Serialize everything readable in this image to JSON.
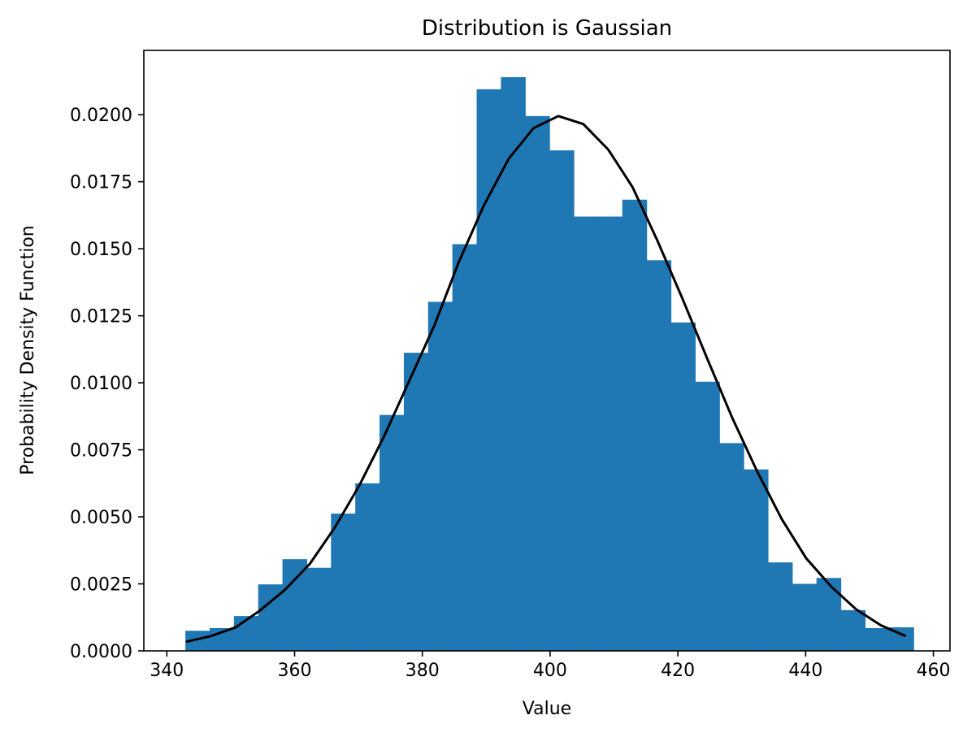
{
  "chart_data": {
    "type": "bar",
    "title": "Distribution is Gaussian",
    "xlabel": "Value",
    "ylabel": "Probability Density Function",
    "xlim": [
      336.4,
      462.6
    ],
    "ylim": [
      0,
      0.0224
    ],
    "xticks": [
      340,
      360,
      380,
      400,
      420,
      440,
      460
    ],
    "xtick_labels": [
      "340",
      "360",
      "380",
      "400",
      "420",
      "440",
      "460"
    ],
    "yticks": [
      0.0,
      0.0025,
      0.005,
      0.0075,
      0.01,
      0.0125,
      0.015,
      0.0175,
      0.02
    ],
    "ytick_labels": [
      "0.0000",
      "0.0025",
      "0.0050",
      "0.0075",
      "0.0100",
      "0.0125",
      "0.0150",
      "0.0175",
      "0.0200"
    ],
    "grid": false,
    "histogram": {
      "color": "#1f77b4",
      "bin_edges": [
        342.9,
        346.7,
        350.5,
        354.3,
        358.1,
        361.9,
        365.7,
        369.5,
        373.3,
        377.1,
        380.9,
        384.7,
        388.5,
        392.3,
        396.1,
        399.9,
        403.7,
        407.5,
        411.3,
        415.1,
        418.9,
        422.7,
        426.5,
        430.3,
        434.1,
        437.9,
        441.7,
        445.5,
        449.3,
        453.1,
        456.9
      ],
      "densities": [
        0.00075,
        0.00085,
        0.0013,
        0.00248,
        0.00342,
        0.0031,
        0.00512,
        0.00625,
        0.0088,
        0.01112,
        0.01302,
        0.01517,
        0.02095,
        0.0214,
        0.01995,
        0.01867,
        0.0162,
        0.0162,
        0.01683,
        0.01457,
        0.01225,
        0.01004,
        0.00775,
        0.00677,
        0.0033,
        0.0025,
        0.00272,
        0.00152,
        0.00085,
        0.00088
      ]
    },
    "series": [
      {
        "type": "line",
        "color": "#000000",
        "x": [
          343.0,
          346.9,
          350.8,
          354.6,
          358.5,
          362.4,
          366.3,
          370.2,
          374.1,
          378.0,
          381.9,
          385.7,
          389.6,
          393.5,
          397.4,
          401.3,
          405.2,
          409.1,
          412.9,
          416.8,
          420.7,
          424.6,
          428.5,
          432.4,
          436.3,
          440.1,
          444.0,
          447.9,
          451.8,
          455.7
        ],
        "y": [
          0.00034,
          0.00055,
          0.00088,
          0.00151,
          0.00228,
          0.00325,
          0.0046,
          0.0062,
          0.00805,
          0.0101,
          0.01215,
          0.0145,
          0.0166,
          0.01835,
          0.0195,
          0.01995,
          0.01965,
          0.0187,
          0.0173,
          0.0153,
          0.01315,
          0.0109,
          0.0087,
          0.0067,
          0.0049,
          0.00345,
          0.0024,
          0.00155,
          0.00095,
          0.00055
        ]
      }
    ]
  }
}
